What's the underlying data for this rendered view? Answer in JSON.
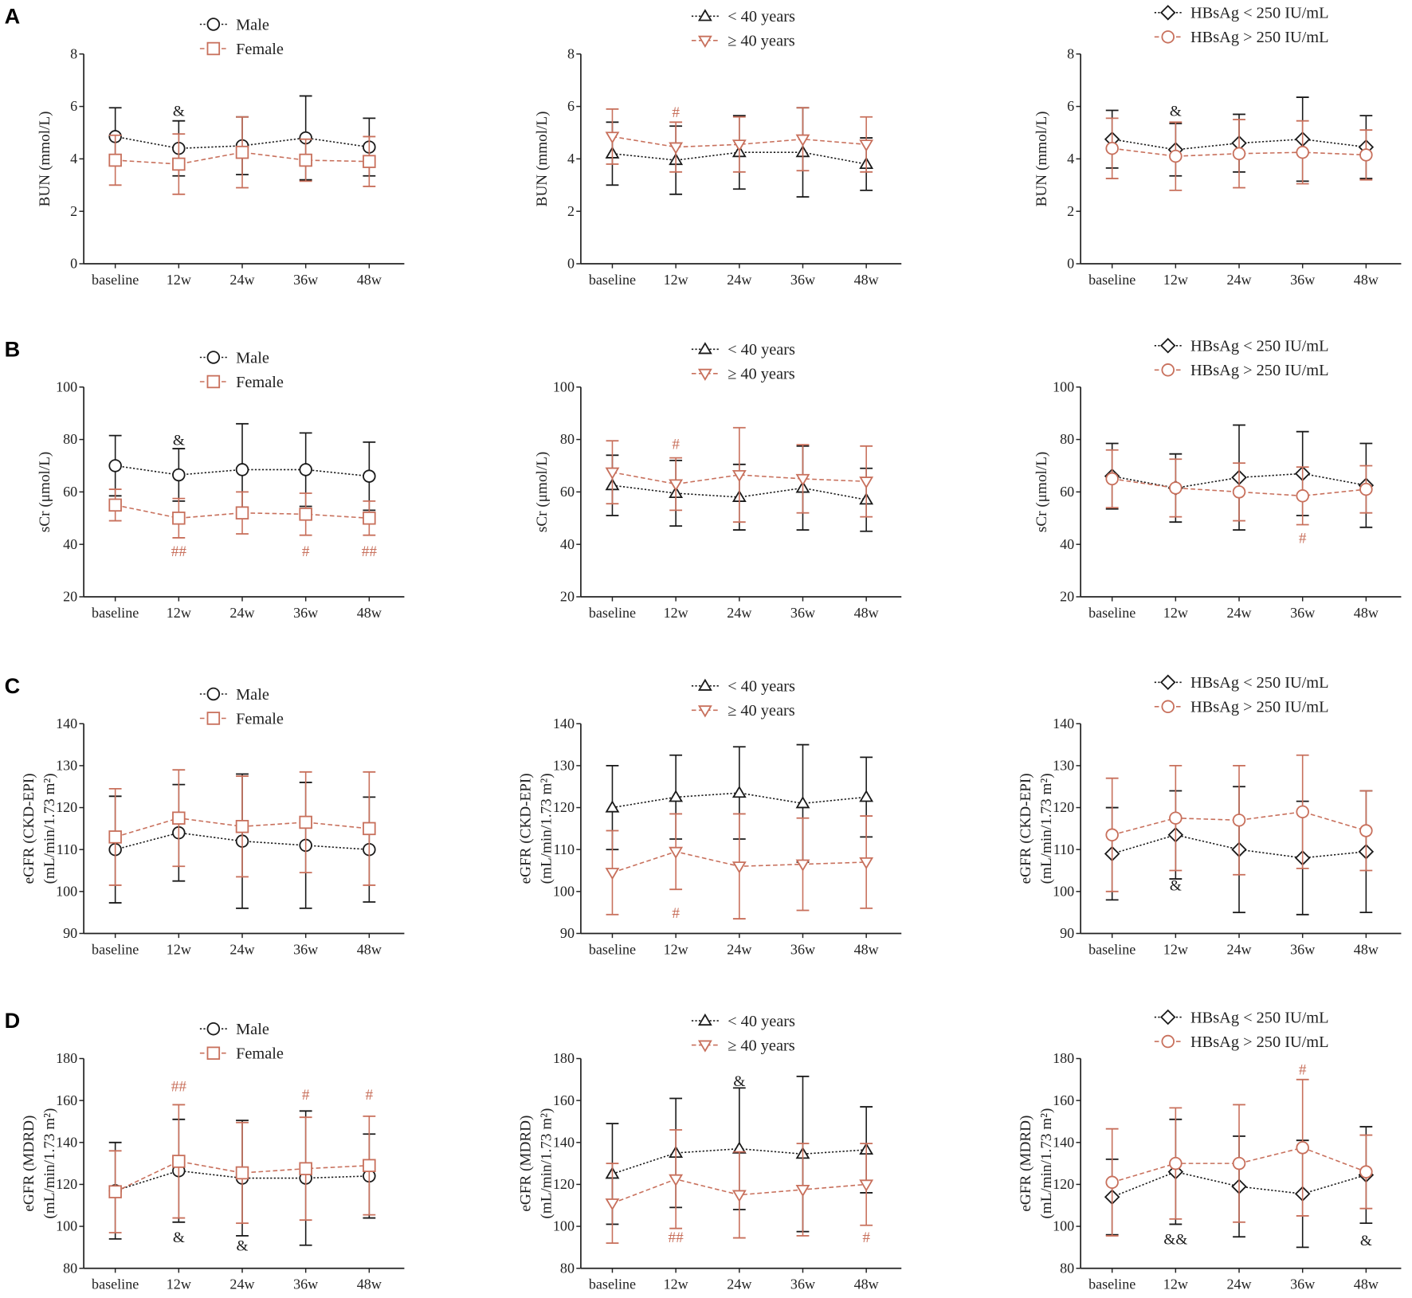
{
  "panel_labels": [
    "A",
    "B",
    "C",
    "D"
  ],
  "colors": {
    "black": "#1a1a1a",
    "red": "#c8705c"
  },
  "chart_data": [
    {
      "type": "line",
      "ylabel": [
        "BUN (mmol/L)"
      ],
      "ylim": [
        0,
        8
      ],
      "yticks": [
        0,
        2,
        4,
        6,
        8
      ],
      "categories": [
        "baseline",
        "12w",
        "24w",
        "36w",
        "48w"
      ],
      "series": [
        {
          "name": "Male",
          "marker": "circle",
          "color": "black",
          "mean": [
            4.85,
            4.4,
            4.5,
            4.8,
            4.45
          ],
          "sd": [
            1.1,
            1.05,
            1.1,
            1.6,
            1.1
          ]
        },
        {
          "name": "Female",
          "marker": "square",
          "color": "red",
          "mean": [
            3.95,
            3.8,
            4.25,
            3.95,
            3.9
          ],
          "sd": [
            0.95,
            1.15,
            1.35,
            0.8,
            0.95
          ]
        }
      ],
      "annotations": [
        {
          "category": 1,
          "value": 5.85,
          "text": "&",
          "color": "black"
        }
      ]
    },
    {
      "type": "line",
      "ylabel": [
        "BUN (mmol/L)"
      ],
      "ylim": [
        0,
        8
      ],
      "yticks": [
        0,
        2,
        4,
        6,
        8
      ],
      "categories": [
        "baseline",
        "12w",
        "24w",
        "36w",
        "48w"
      ],
      "series": [
        {
          "name": "< 40 years",
          "marker": "triangle-up",
          "color": "black",
          "mean": [
            4.2,
            3.95,
            4.25,
            4.25,
            3.8
          ],
          "sd": [
            1.2,
            1.3,
            1.4,
            1.7,
            1.0
          ]
        },
        {
          "name": "≥ 40 years",
          "marker": "triangle-down",
          "color": "red",
          "mean": [
            4.85,
            4.45,
            4.55,
            4.75,
            4.55
          ],
          "sd": [
            1.05,
            0.95,
            1.05,
            1.2,
            1.05
          ]
        }
      ],
      "annotations": [
        {
          "category": 1,
          "value": 5.8,
          "text": "#",
          "color": "red"
        }
      ]
    },
    {
      "type": "line",
      "ylabel": [
        "BUN (mmol/L)"
      ],
      "ylim": [
        0,
        8
      ],
      "yticks": [
        0,
        2,
        4,
        6,
        8
      ],
      "categories": [
        "baseline",
        "12w",
        "24w",
        "36w",
        "48w"
      ],
      "series": [
        {
          "name": "HBsAg < 250 IU/mL",
          "marker": "diamond",
          "color": "black",
          "mean": [
            4.75,
            4.35,
            4.6,
            4.75,
            4.45
          ],
          "sd": [
            1.1,
            1.0,
            1.1,
            1.6,
            1.2
          ]
        },
        {
          "name": "HBsAg > 250 IU/mL",
          "marker": "circle",
          "color": "red",
          "mean": [
            4.4,
            4.1,
            4.2,
            4.25,
            4.15
          ],
          "sd": [
            1.15,
            1.3,
            1.3,
            1.2,
            0.95
          ]
        }
      ],
      "annotations": [
        {
          "category": 1,
          "value": 5.85,
          "text": "&",
          "color": "black"
        }
      ]
    },
    {
      "type": "line",
      "ylabel": [
        "sCr (μmol/L)"
      ],
      "ylim": [
        20,
        100
      ],
      "yticks": [
        20,
        40,
        60,
        80,
        100
      ],
      "categories": [
        "baseline",
        "12w",
        "24w",
        "36w",
        "48w"
      ],
      "series": [
        {
          "name": "Male",
          "marker": "circle",
          "color": "black",
          "mean": [
            70,
            66.5,
            68.5,
            68.5,
            66
          ],
          "sd": [
            11.5,
            10,
            17.5,
            14,
            13
          ]
        },
        {
          "name": "Female",
          "marker": "square",
          "color": "red",
          "mean": [
            55,
            50,
            52,
            51.5,
            50
          ],
          "sd": [
            6,
            7.5,
            8,
            8,
            6.5
          ]
        }
      ],
      "annotations": [
        {
          "category": 1,
          "value": 80,
          "text": "&",
          "color": "black"
        },
        {
          "category": 1,
          "value": 37.5,
          "text": "##",
          "color": "red"
        },
        {
          "category": 3,
          "value": 37.5,
          "text": "#",
          "color": "red"
        },
        {
          "category": 4,
          "value": 37.5,
          "text": "##",
          "color": "red"
        }
      ]
    },
    {
      "type": "line",
      "ylabel": [
        "sCr (μmol/L)"
      ],
      "ylim": [
        20,
        100
      ],
      "yticks": [
        20,
        40,
        60,
        80,
        100
      ],
      "categories": [
        "baseline",
        "12w",
        "24w",
        "36w",
        "48w"
      ],
      "series": [
        {
          "name": "< 40 years",
          "marker": "triangle-up",
          "color": "black",
          "mean": [
            62.5,
            59.5,
            58,
            61.5,
            57
          ],
          "sd": [
            11.5,
            12.5,
            12.5,
            16,
            12
          ]
        },
        {
          "name": "≥ 40 years",
          "marker": "triangle-down",
          "color": "red",
          "mean": [
            67.5,
            63,
            66.5,
            65,
            64
          ],
          "sd": [
            12,
            10,
            18,
            13,
            13.5
          ]
        }
      ],
      "annotations": [
        {
          "category": 1,
          "value": 78.5,
          "text": "#",
          "color": "red"
        }
      ]
    },
    {
      "type": "line",
      "ylabel": [
        "sCr (μmol/L)"
      ],
      "ylim": [
        20,
        100
      ],
      "yticks": [
        20,
        40,
        60,
        80,
        100
      ],
      "categories": [
        "baseline",
        "12w",
        "24w",
        "36w",
        "48w"
      ],
      "series": [
        {
          "name": "HBsAg < 250 IU/mL",
          "marker": "diamond",
          "color": "black",
          "mean": [
            66,
            61.5,
            65.5,
            67,
            62.5
          ],
          "sd": [
            12.5,
            13,
            20,
            16,
            16
          ]
        },
        {
          "name": "HBsAg > 250 IU/mL",
          "marker": "circle",
          "color": "red",
          "mean": [
            65,
            61.5,
            60,
            58.5,
            61
          ],
          "sd": [
            11,
            11,
            11,
            11,
            9
          ]
        }
      ],
      "annotations": [
        {
          "category": 3,
          "value": 42.5,
          "text": "#",
          "color": "red"
        }
      ]
    },
    {
      "type": "line",
      "ylabel": [
        "eGFR (CKD-EPI)",
        "(mL/min/1.73 m²)"
      ],
      "ylim": [
        90,
        140
      ],
      "yticks": [
        90,
        100,
        110,
        120,
        130,
        140
      ],
      "categories": [
        "baseline",
        "12w",
        "24w",
        "36w",
        "48w"
      ],
      "series": [
        {
          "name": "Male",
          "marker": "circle",
          "color": "black",
          "mean": [
            110,
            114,
            112,
            111,
            110
          ],
          "sd": [
            12.7,
            11.5,
            16,
            15,
            12.5
          ]
        },
        {
          "name": "Female",
          "marker": "square",
          "color": "red",
          "mean": [
            113,
            117.5,
            115.5,
            116.5,
            115
          ],
          "sd": [
            11.5,
            11.5,
            12,
            12,
            13.5
          ]
        }
      ],
      "annotations": []
    },
    {
      "type": "line",
      "ylabel": [
        "eGFR (CKD-EPI)",
        "(mL/min/1.73 m²)"
      ],
      "ylim": [
        90,
        140
      ],
      "yticks": [
        90,
        100,
        110,
        120,
        130,
        140
      ],
      "categories": [
        "baseline",
        "12w",
        "24w",
        "36w",
        "48w"
      ],
      "series": [
        {
          "name": "< 40 years",
          "marker": "triangle-up",
          "color": "black",
          "mean": [
            120,
            122.5,
            123.5,
            121,
            122.5
          ],
          "sd": [
            10,
            10,
            11,
            14,
            9.5
          ]
        },
        {
          "name": "≥ 40 years",
          "marker": "triangle-down",
          "color": "red",
          "mean": [
            104.5,
            109.5,
            106,
            106.5,
            107
          ],
          "sd": [
            10,
            9,
            12.5,
            11,
            11
          ]
        }
      ],
      "annotations": [
        {
          "category": 1,
          "value": 95,
          "text": "#",
          "color": "red"
        }
      ]
    },
    {
      "type": "line",
      "ylabel": [
        "eGFR (CKD-EPI)",
        "(mL/min/1.73 m²)"
      ],
      "ylim": [
        90,
        140
      ],
      "yticks": [
        90,
        100,
        110,
        120,
        130,
        140
      ],
      "categories": [
        "baseline",
        "12w",
        "24w",
        "36w",
        "48w"
      ],
      "series": [
        {
          "name": "HBsAg < 250 IU/mL",
          "marker": "diamond",
          "color": "black",
          "mean": [
            109,
            113.5,
            110,
            108,
            109.5
          ],
          "sd": [
            11,
            10.5,
            15,
            13.5,
            14.5
          ]
        },
        {
          "name": "HBsAg > 250 IU/mL",
          "marker": "circle",
          "color": "red",
          "mean": [
            113.5,
            117.5,
            117,
            119,
            114.5
          ],
          "sd": [
            13.5,
            12.5,
            13,
            13.5,
            9.5
          ]
        }
      ],
      "annotations": [
        {
          "category": 1,
          "value": 101.5,
          "text": "&",
          "color": "black"
        }
      ]
    },
    {
      "type": "line",
      "ylabel": [
        "eGFR (MDRD)",
        "(mL/min/1.73 m²)"
      ],
      "ylim": [
        80,
        180
      ],
      "yticks": [
        80,
        100,
        120,
        140,
        160,
        180
      ],
      "categories": [
        "baseline",
        "12w",
        "24w",
        "36w",
        "48w"
      ],
      "series": [
        {
          "name": "Male",
          "marker": "circle",
          "color": "black",
          "mean": [
            117,
            126.5,
            123,
            123,
            124
          ],
          "sd": [
            23,
            24.5,
            27.5,
            32,
            20
          ]
        },
        {
          "name": "Female",
          "marker": "square",
          "color": "red",
          "mean": [
            116.5,
            131,
            125.5,
            127.5,
            129
          ],
          "sd": [
            19.5,
            27,
            24,
            24.5,
            23.5
          ]
        }
      ],
      "annotations": [
        {
          "category": 1,
          "value": 167,
          "text": "##",
          "color": "red"
        },
        {
          "category": 1,
          "value": 95,
          "text": "&",
          "color": "black"
        },
        {
          "category": 2,
          "value": 91,
          "text": "&",
          "color": "black"
        },
        {
          "category": 3,
          "value": 163,
          "text": "#",
          "color": "red"
        },
        {
          "category": 4,
          "value": 163,
          "text": "#",
          "color": "red"
        }
      ]
    },
    {
      "type": "line",
      "ylabel": [
        "eGFR (MDRD)",
        "(mL/min/1.73 m²)"
      ],
      "ylim": [
        80,
        180
      ],
      "yticks": [
        80,
        100,
        120,
        140,
        160,
        180
      ],
      "categories": [
        "baseline",
        "12w",
        "24w",
        "36w",
        "48w"
      ],
      "series": [
        {
          "name": "< 40 years",
          "marker": "triangle-up",
          "color": "black",
          "mean": [
            125,
            135,
            137,
            134.5,
            136.5
          ],
          "sd": [
            24,
            26,
            29,
            37,
            20.5
          ]
        },
        {
          "name": "≥ 40 years",
          "marker": "triangle-down",
          "color": "red",
          "mean": [
            111,
            122.5,
            115,
            117.5,
            120
          ],
          "sd": [
            19,
            23.5,
            20.5,
            22,
            19.5
          ]
        }
      ],
      "annotations": [
        {
          "category": 2,
          "value": 169.5,
          "text": "&",
          "color": "black"
        },
        {
          "category": 1,
          "value": 95,
          "text": "##",
          "color": "red"
        },
        {
          "category": 4,
          "value": 95,
          "text": "#",
          "color": "red"
        }
      ]
    },
    {
      "type": "line",
      "ylabel": [
        "eGFR (MDRD)",
        "(mL/min/1.73 m²)"
      ],
      "ylim": [
        80,
        180
      ],
      "yticks": [
        80,
        100,
        120,
        140,
        160,
        180
      ],
      "categories": [
        "baseline",
        "12w",
        "24w",
        "36w",
        "48w"
      ],
      "series": [
        {
          "name": "HBsAg < 250 IU/mL",
          "marker": "diamond",
          "color": "black",
          "mean": [
            114,
            126,
            119,
            115.5,
            124.5
          ],
          "sd": [
            18,
            25,
            24,
            25.5,
            23
          ]
        },
        {
          "name": "HBsAg > 250 IU/mL",
          "marker": "circle",
          "color": "red",
          "mean": [
            121,
            130,
            130,
            137.5,
            126
          ],
          "sd": [
            25.5,
            26.5,
            28,
            32.5,
            17.5
          ]
        }
      ],
      "annotations": [
        {
          "category": 1,
          "value": 94,
          "text": "&&",
          "color": "black"
        },
        {
          "category": 4,
          "value": 93.5,
          "text": "&",
          "color": "black"
        },
        {
          "category": 3,
          "value": 175,
          "text": "#",
          "color": "red"
        }
      ]
    }
  ]
}
